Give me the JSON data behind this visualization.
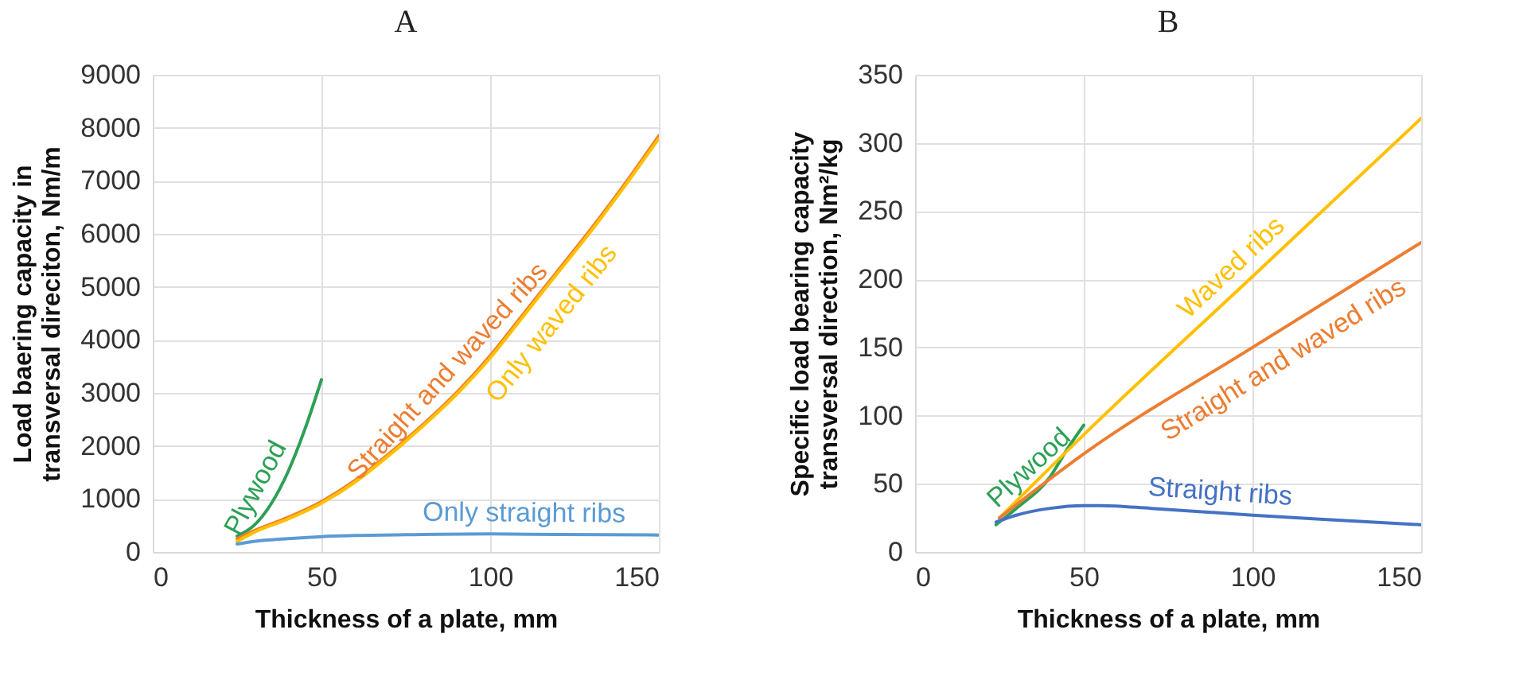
{
  "chart_data": [
    {
      "type": "line",
      "title": "A",
      "xlabel": "Thickness of a plate, mm",
      "ylabel": "Load baering capacity in transversal direciton, Nm/m",
      "xlim": [
        0,
        150
      ],
      "xticks": [
        0,
        50,
        100,
        150
      ],
      "ylim": [
        0,
        9000
      ],
      "yticks": [
        0,
        1000,
        2000,
        3000,
        4000,
        5000,
        6000,
        7000,
        8000,
        9000
      ],
      "grid": true,
      "marker": "none",
      "line_style": "solid",
      "series": [
        {
          "name": "Plywood",
          "color": "#2ca055",
          "x": [
            25,
            30,
            35,
            40,
            45,
            50
          ],
          "values": [
            300,
            500,
            900,
            1500,
            2300,
            3250
          ]
        },
        {
          "name": "Straight and waved ribs",
          "color": "#ed7d31",
          "x": [
            25,
            30,
            40,
            50,
            60,
            70,
            80,
            90,
            100,
            110,
            120,
            130,
            140,
            150
          ],
          "values": [
            250,
            400,
            650,
            950,
            1350,
            1850,
            2400,
            3000,
            3700,
            4500,
            5300,
            6100,
            6950,
            7850
          ]
        },
        {
          "name": "Only waved ribs",
          "color": "#ffc000",
          "x": [
            25,
            30,
            40,
            50,
            60,
            70,
            80,
            90,
            100,
            110,
            120,
            130,
            140,
            150
          ],
          "values": [
            200,
            370,
            620,
            920,
            1320,
            1820,
            2370,
            2970,
            3660,
            4460,
            5260,
            6060,
            6910,
            7800
          ]
        },
        {
          "name": "Only straight ribs",
          "color": "#5b9bd5",
          "x": [
            25,
            30,
            40,
            50,
            60,
            80,
            100,
            120,
            150
          ],
          "values": [
            150,
            200,
            250,
            290,
            310,
            330,
            340,
            330,
            320
          ]
        }
      ]
    },
    {
      "type": "line",
      "title": "B",
      "xlabel": "Thickness of a plate, mm",
      "ylabel": "Specific load bearing capacity transversal direction, Nm²/kg",
      "xlim": [
        0,
        150
      ],
      "xticks": [
        0,
        50,
        100,
        150
      ],
      "ylim": [
        0,
        350
      ],
      "yticks": [
        0,
        50,
        100,
        150,
        200,
        250,
        300,
        350
      ],
      "grid": true,
      "marker": "none",
      "line_style": "solid",
      "series": [
        {
          "name": "Plywood",
          "color": "#2ca055",
          "x": [
            24,
            30,
            40,
            45,
            50
          ],
          "values": [
            20,
            32,
            55,
            75,
            93
          ]
        },
        {
          "name": "Waved ribs",
          "color": "#ffc000",
          "x": [
            25,
            50,
            100,
            150
          ],
          "values": [
            25,
            86,
            202,
            318
          ]
        },
        {
          "name": "Straight and waved ribs",
          "color": "#ed7d31",
          "x": [
            25,
            50,
            100,
            150
          ],
          "values": [
            25,
            72,
            150,
            227
          ]
        },
        {
          "name": "Straight ribs",
          "color": "#4472c4",
          "x": [
            24,
            30,
            40,
            50,
            55,
            70,
            100,
            120,
            150
          ],
          "values": [
            22,
            27,
            32,
            34,
            34,
            32,
            27,
            24,
            20
          ]
        }
      ]
    }
  ]
}
